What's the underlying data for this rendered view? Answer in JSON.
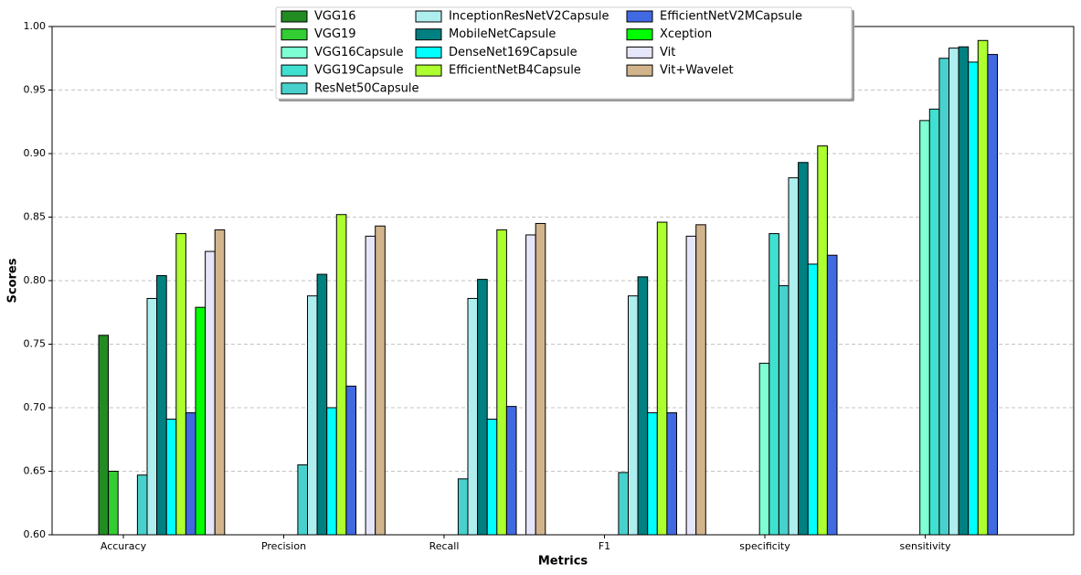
{
  "chart_data": {
    "type": "bar",
    "xlabel": "Metrics",
    "ylabel": "Scores",
    "categories": [
      "Accuracy",
      "Precision",
      "Recall",
      "F1",
      "specificity",
      "sensitivity"
    ],
    "ylim": [
      0.6,
      1.0
    ],
    "yticks": [
      {
        "value": 0.6,
        "label": "0.60"
      },
      0.65,
      {
        "value": 0.7,
        "label": "0.70"
      },
      0.75,
      {
        "value": 0.8,
        "label": "0.80"
      },
      0.85,
      {
        "value": 0.9,
        "label": "0.90"
      },
      0.95,
      {
        "value": 1.0,
        "label": "1.00"
      }
    ],
    "grid": true,
    "legend": "upper center",
    "series": [
      {
        "name": "VGG16",
        "color": "#228b22",
        "values": [
          0.757,
          null,
          null,
          null,
          null,
          null
        ]
      },
      {
        "name": "VGG19",
        "color": "#32cd32",
        "values": [
          0.65,
          null,
          null,
          null,
          null,
          null
        ]
      },
      {
        "name": "VGG16Capsule",
        "color": "#7fffd4",
        "values": [
          null,
          null,
          null,
          null,
          0.735,
          0.926
        ]
      },
      {
        "name": "VGG19Capsule",
        "color": "#40e0d0",
        "values": [
          null,
          null,
          null,
          null,
          0.837,
          0.935
        ]
      },
      {
        "name": "ResNet50Capsule",
        "color": "#48d1cc",
        "values": [
          0.647,
          0.655,
          0.644,
          0.649,
          0.796,
          0.975
        ]
      },
      {
        "name": "InceptionResNetV2Capsule",
        "color": "#afeeee",
        "values": [
          0.786,
          0.788,
          0.786,
          0.788,
          0.881,
          0.983
        ]
      },
      {
        "name": "MobileNetCapsule",
        "color": "#008080",
        "values": [
          0.804,
          0.805,
          0.801,
          0.803,
          0.893,
          0.984
        ]
      },
      {
        "name": "DenseNet169Capsule",
        "color": "#00ffff",
        "values": [
          0.691,
          0.7,
          0.691,
          0.696,
          0.813,
          0.972
        ]
      },
      {
        "name": "EfficientNetB4Capsule",
        "color": "#adff2f",
        "values": [
          0.837,
          0.852,
          0.84,
          0.846,
          0.906,
          0.989
        ]
      },
      {
        "name": "EfficientNetV2MCapsule",
        "color": "#4169e1",
        "values": [
          0.696,
          0.717,
          0.701,
          0.696,
          0.82,
          0.978
        ]
      },
      {
        "name": "Xception",
        "color": "#00ff00",
        "values": [
          0.779,
          null,
          null,
          null,
          null,
          null
        ]
      },
      {
        "name": "Vit",
        "color": "#e6e6fa",
        "values": [
          0.823,
          0.835,
          0.836,
          0.835,
          null,
          null
        ]
      },
      {
        "name": "Vit+Wavelet",
        "color": "#d2b48c",
        "values": [
          0.84,
          0.843,
          0.845,
          0.844,
          null,
          null
        ]
      }
    ]
  }
}
